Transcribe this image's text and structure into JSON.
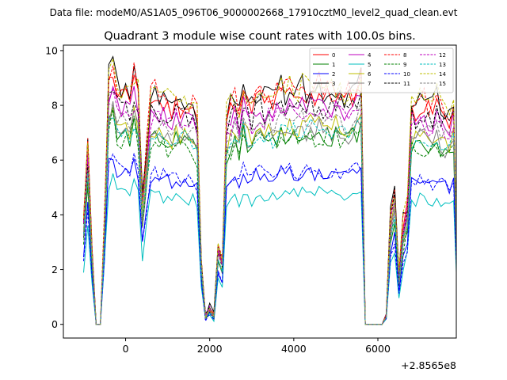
{
  "chart_data": {
    "type": "line",
    "suptitle": "Data file: modeM0/AS1A05_096T06_9000002668_17910cztM0_level2_quad_clean.evt",
    "title": "Quadrant 3 module wise count rates with 100.0s bins.",
    "xlabel": "",
    "ylabel": "",
    "offset_text": "+2.8565e8",
    "xlim": [
      -1480,
      7865
    ],
    "ylim": [
      -0.5,
      10.2
    ],
    "xticks": [
      0,
      2000,
      4000,
      6000
    ],
    "yticks": [
      0,
      2,
      4,
      6,
      8,
      10
    ],
    "x_start": -1000,
    "x_step": 100,
    "legend": {
      "location": "top-right",
      "columns": 4
    },
    "base_profile": [
      3.5,
      6.2,
      2.6,
      0.0,
      0.0,
      3.7,
      8.5,
      8.9,
      8.1,
      8.0,
      8.4,
      7.8,
      8.5,
      7.9,
      4.2,
      6.0,
      7.8,
      7.9,
      7.8,
      7.7,
      7.6,
      7.5,
      7.8,
      7.6,
      7.7,
      7.6,
      7.6,
      7.2,
      2.2,
      0.3,
      0.6,
      0.3,
      2.7,
      2.2,
      7.2,
      7.5,
      7.8,
      7.3,
      8.1,
      7.7,
      7.5,
      7.9,
      8.0,
      7.7,
      7.9,
      7.7,
      7.9,
      8.1,
      7.9,
      8.2,
      8.0,
      7.8,
      8.1,
      8.0,
      8.2,
      7.9,
      8.2,
      7.9,
      8.0,
      7.9,
      8.1,
      8.0,
      7.8,
      7.9,
      8.0,
      8.1,
      8.4,
      0.0,
      0.0,
      0.0,
      0.0,
      0.0,
      0.4,
      3.7,
      4.6,
      1.7,
      3.4,
      4.1,
      7.6,
      7.5,
      7.7,
      7.6,
      7.5,
      7.4,
      7.8,
      7.4,
      7.3,
      7.2,
      7.6,
      0.8
    ],
    "series": [
      {
        "name": "0",
        "color": "#ff0000",
        "style": "solid",
        "scale": 1.04,
        "noise": 0.4,
        "seed": 11
      },
      {
        "name": "1",
        "color": "#008000",
        "style": "solid",
        "scale": 0.86,
        "noise": 0.35,
        "seed": 12
      },
      {
        "name": "2",
        "color": "#0000ff",
        "style": "solid",
        "scale": 0.69,
        "noise": 0.25,
        "seed": 13
      },
      {
        "name": "3",
        "color": "#000000",
        "style": "solid",
        "scale": 1.07,
        "noise": 0.45,
        "seed": 14
      },
      {
        "name": "4",
        "color": "#bf00bf",
        "style": "solid",
        "scale": 0.99,
        "noise": 0.35,
        "seed": 15
      },
      {
        "name": "5",
        "color": "#00bfbf",
        "style": "solid",
        "scale": 0.6,
        "noise": 0.25,
        "seed": 16
      },
      {
        "name": "6",
        "color": "#bfbf00",
        "style": "solid",
        "scale": 0.9,
        "noise": 0.35,
        "seed": 17
      },
      {
        "name": "7",
        "color": "#808080",
        "style": "solid",
        "scale": 0.88,
        "noise": 0.4,
        "seed": 18
      },
      {
        "name": "8",
        "color": "#ff0000",
        "style": "dashed",
        "scale": 1.07,
        "noise": 0.5,
        "seed": 19
      },
      {
        "name": "9",
        "color": "#008000",
        "style": "dashed",
        "scale": 0.85,
        "noise": 0.4,
        "seed": 20
      },
      {
        "name": "10",
        "color": "#0000ff",
        "style": "dashed",
        "scale": 0.7,
        "noise": 0.3,
        "seed": 21
      },
      {
        "name": "11",
        "color": "#000000",
        "style": "dashed",
        "scale": 1.0,
        "noise": 0.4,
        "seed": 22
      },
      {
        "name": "12",
        "color": "#bf00bf",
        "style": "dashed",
        "scale": 0.96,
        "noise": 0.4,
        "seed": 23
      },
      {
        "name": "13",
        "color": "#00bfbf",
        "style": "dashed",
        "scale": 0.88,
        "noise": 0.35,
        "seed": 24
      },
      {
        "name": "14",
        "color": "#bfbf00",
        "style": "dashed",
        "scale": 1.08,
        "noise": 0.45,
        "seed": 25
      },
      {
        "name": "15",
        "color": "#808080",
        "style": "dashed",
        "scale": 0.93,
        "noise": 0.4,
        "seed": 26
      }
    ]
  }
}
